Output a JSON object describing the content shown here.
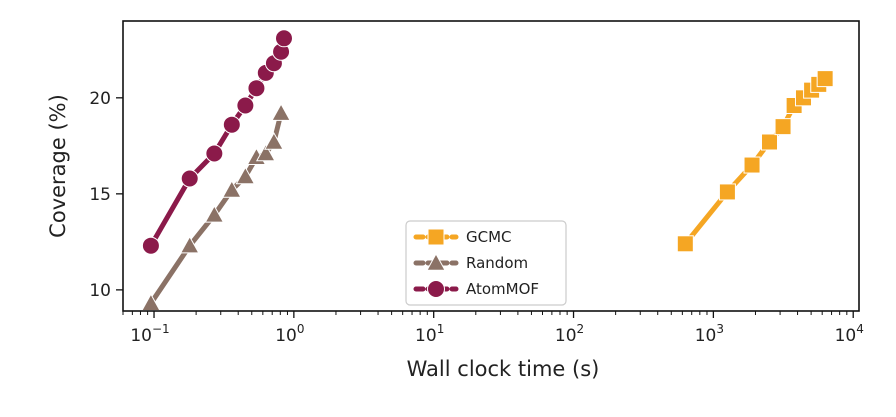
{
  "chart_data": {
    "type": "line",
    "title": "",
    "xlabel": "Wall clock time (s)",
    "ylabel": "Coverage (%)",
    "xscale": "log",
    "xlim": [
      0.06,
      11000
    ],
    "ylim": [
      8.9,
      24.0
    ],
    "xticks": [
      {
        "value": 0.1,
        "base": "10",
        "exp": "−1"
      },
      {
        "value": 1,
        "base": "10",
        "exp": "0"
      },
      {
        "value": 10,
        "base": "10",
        "exp": "1"
      },
      {
        "value": 100,
        "base": "10",
        "exp": "2"
      },
      {
        "value": 1000,
        "base": "10",
        "exp": "3"
      },
      {
        "value": 10000,
        "base": "10",
        "exp": "4"
      }
    ],
    "yticks": [
      {
        "value": 10,
        "label": "10"
      },
      {
        "value": 15,
        "label": "15"
      },
      {
        "value": 20,
        "label": "20"
      }
    ],
    "grid": false,
    "legend": {
      "position": "bottom-center"
    },
    "series": [
      {
        "name": "GCMC",
        "color": "#F5A623",
        "marker": "square",
        "x": [
          630,
          1260,
          1890,
          2520,
          3150,
          3780,
          4410,
          5040,
          5670,
          6300
        ],
        "y": [
          12.4,
          15.1,
          16.5,
          17.7,
          18.5,
          19.6,
          20.0,
          20.4,
          20.7,
          21.0
        ]
      },
      {
        "name": "Random",
        "color": "#8B7266",
        "marker": "triangle",
        "x": [
          0.095,
          0.18,
          0.27,
          0.36,
          0.45,
          0.54,
          0.63,
          0.72,
          0.81
        ],
        "y": [
          9.3,
          12.3,
          13.9,
          15.2,
          15.9,
          16.9,
          17.1,
          17.7,
          19.2
        ]
      },
      {
        "name": "AtomMOF",
        "color": "#8B1A4A",
        "marker": "circle",
        "x": [
          0.095,
          0.18,
          0.27,
          0.36,
          0.45,
          0.54,
          0.63,
          0.72,
          0.81,
          0.85
        ],
        "y": [
          12.3,
          15.8,
          17.1,
          18.6,
          19.6,
          20.5,
          21.3,
          21.8,
          22.4,
          23.1
        ]
      }
    ]
  }
}
